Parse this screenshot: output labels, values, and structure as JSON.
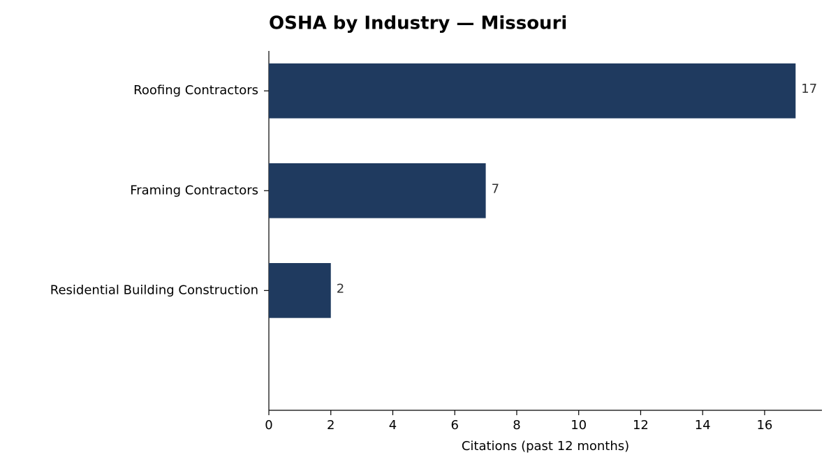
{
  "chart_data": {
    "type": "barh",
    "title": "OSHA by Industry — Missouri",
    "x_label": "Citations (past 12 months)",
    "categories": [
      "Roofing Contractors",
      "Framing Contractors",
      "Residential Building Construction"
    ],
    "values": [
      17,
      7,
      2
    ],
    "color": "#1f3a5f",
    "xlim": [
      0,
      17.85
    ],
    "xticks": [
      0,
      2,
      4,
      6,
      8,
      10,
      12,
      14,
      16
    ],
    "grid": false
  }
}
